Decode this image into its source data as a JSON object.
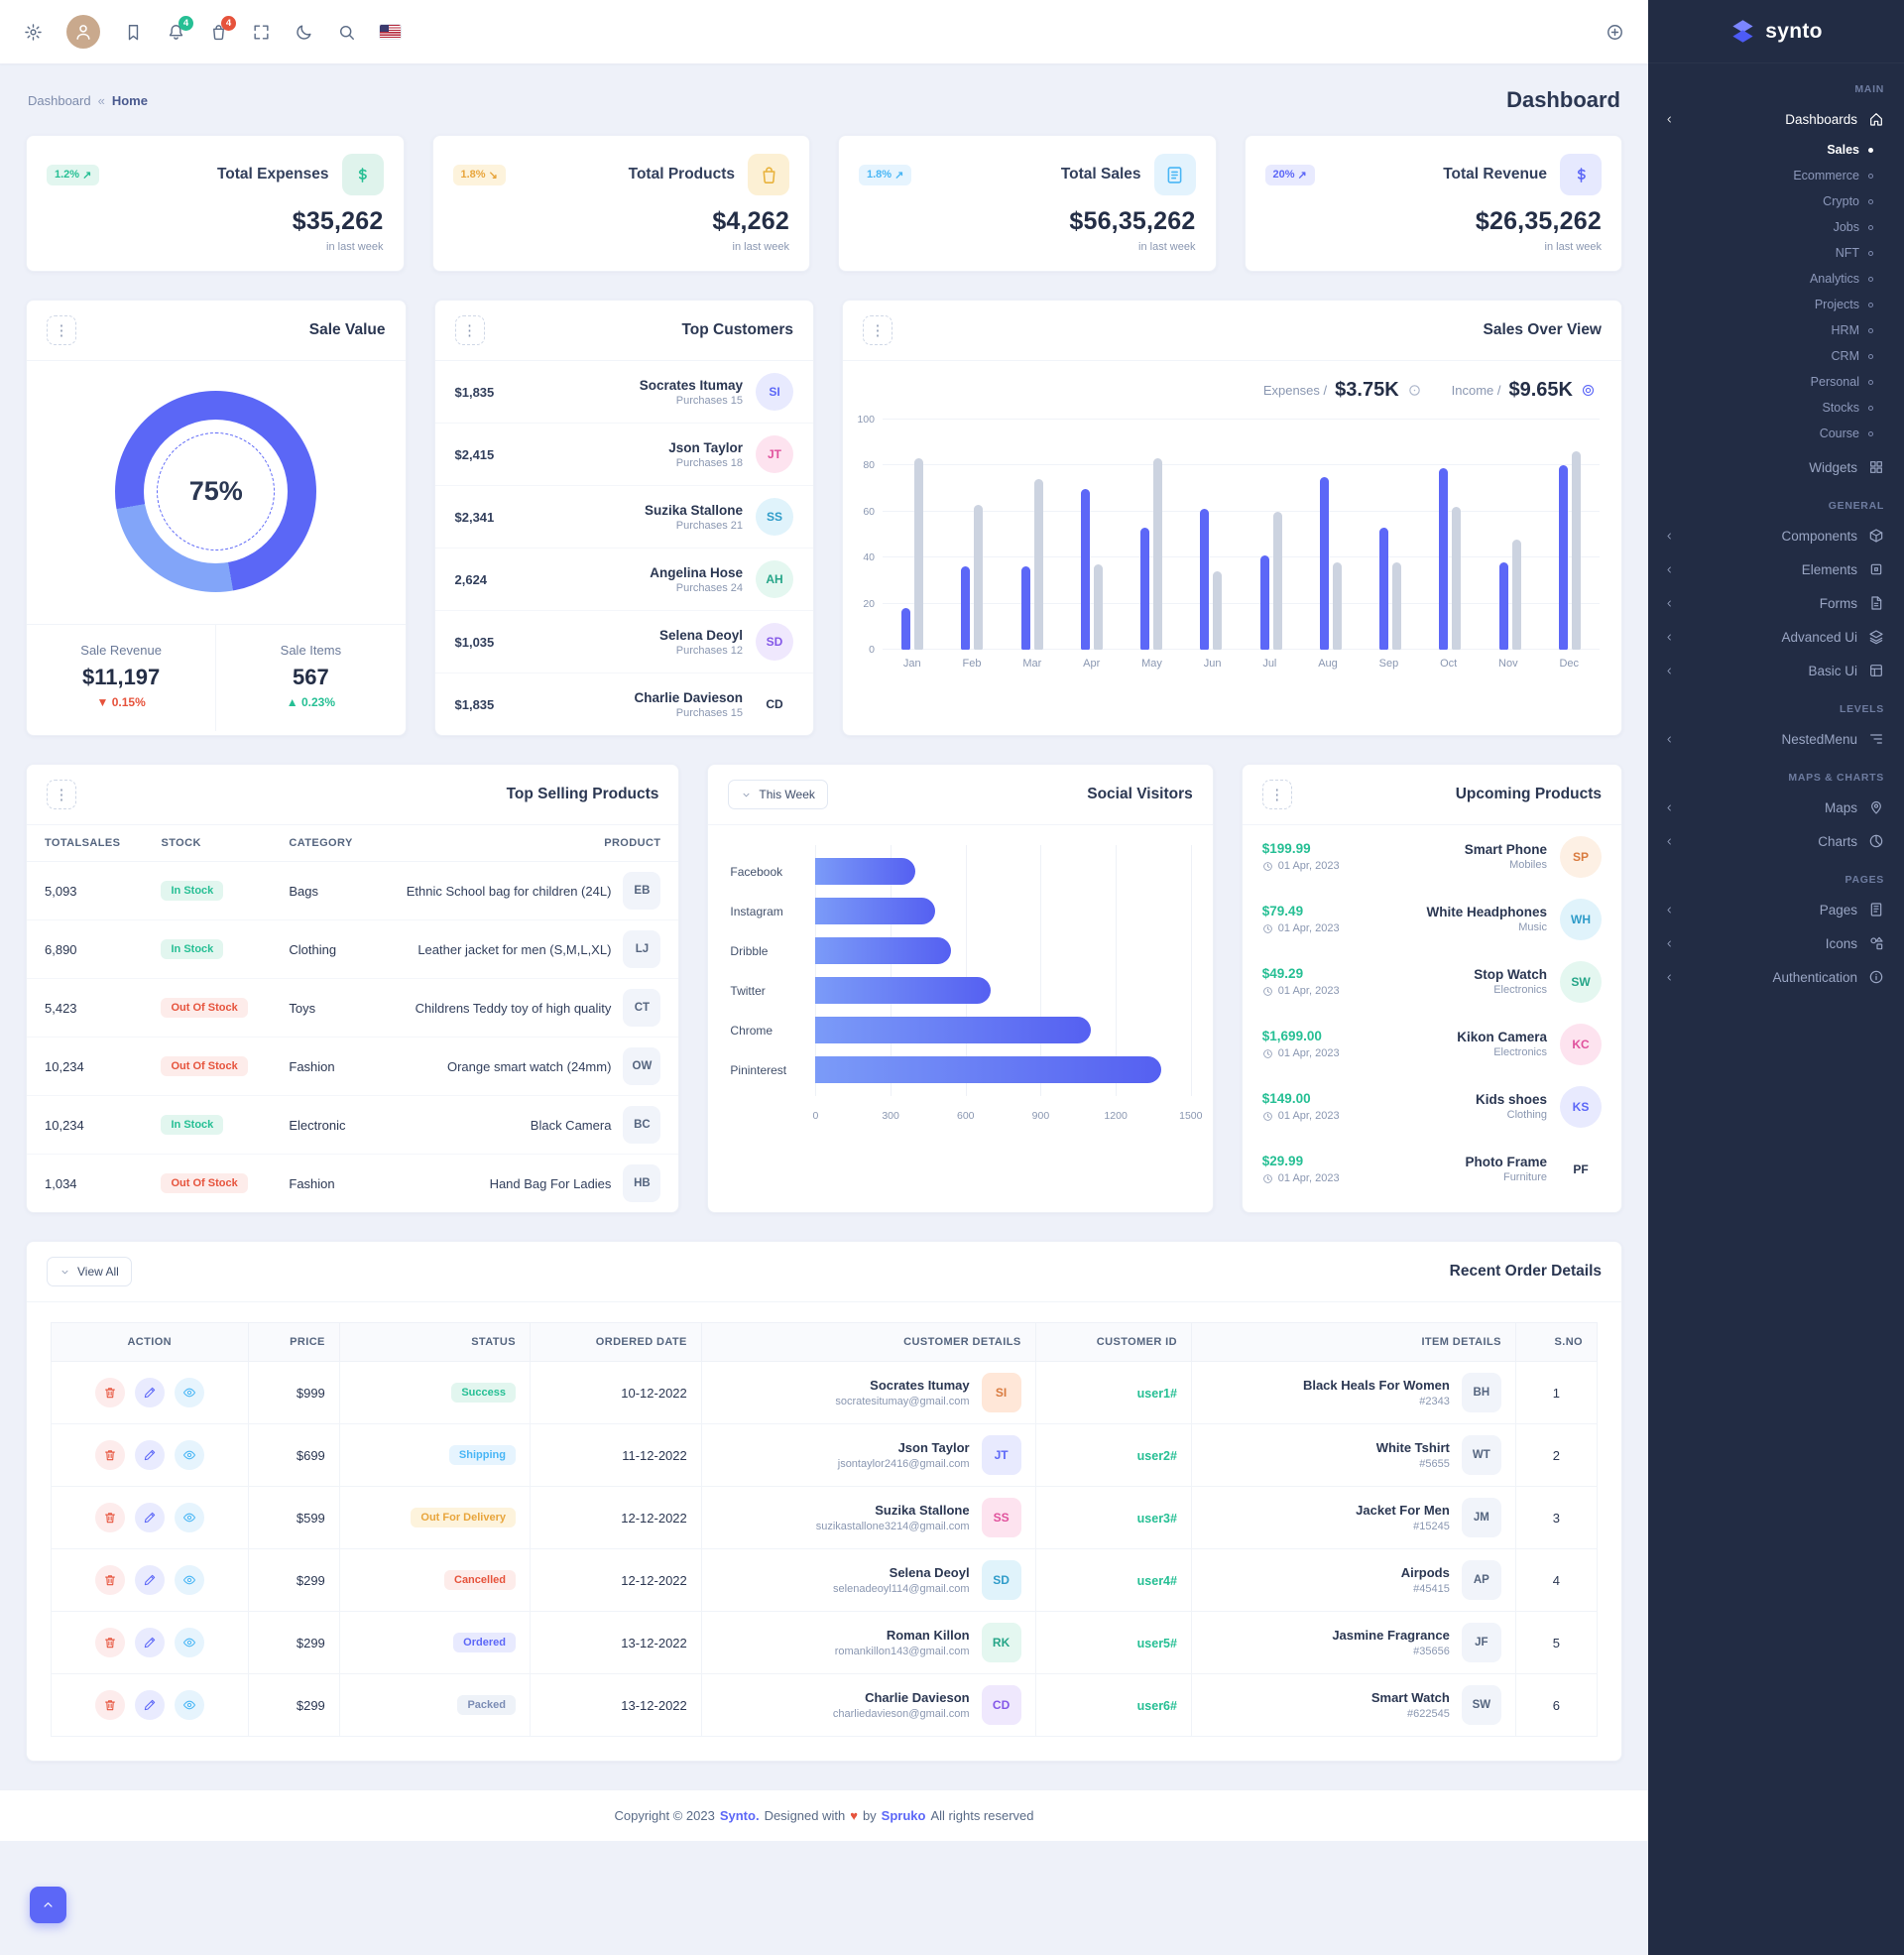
{
  "brand": {
    "name": "synto"
  },
  "icons": {
    "kebab": "⋮"
  },
  "topbar": {
    "bell_badge": "4",
    "cart_badge": "4"
  },
  "breadcrumb": {
    "root": "Dashboard",
    "sep": "«",
    "current": "Home"
  },
  "page_title": "Dashboard",
  "stats": [
    {
      "label": "Total Expenses",
      "value": "$35,262",
      "delta": "1.2%",
      "arrow": "↗",
      "note": "in last week",
      "tone": "success",
      "icon": "#i-dollar"
    },
    {
      "label": "Total Products",
      "value": "$4,262",
      "delta": "1.8%",
      "arrow": "↘",
      "note": "in last week",
      "tone": "warning",
      "icon": "#i-bag"
    },
    {
      "label": "Total Sales",
      "value": "$56,35,262",
      "delta": "1.8%",
      "arrow": "↗",
      "note": "in last week",
      "tone": "info",
      "icon": "#i-list"
    },
    {
      "label": "Total Revenue",
      "value": "$26,35,262",
      "delta": "20%",
      "arrow": "↗",
      "note": "in last week",
      "tone": "primary",
      "icon": "#i-dollar"
    }
  ],
  "sale_value": {
    "title": "Sale Value",
    "percent": "75%",
    "revenue_label": "Sale Revenue",
    "revenue": "$11,197",
    "revenue_arrow": "▼",
    "revenue_delta": "0.15%",
    "items_label": "Sale Items",
    "items": "567",
    "items_arrow": "▲",
    "items_delta": "0.23%"
  },
  "top_customers": {
    "title": "Top Customers",
    "rows": [
      {
        "amount": "$1,835",
        "name": "Socrates Itumay",
        "purchases": "Purchases 15",
        "initials": "SI"
      },
      {
        "amount": "$2,415",
        "name": "Json Taylor",
        "purchases": "Purchases 18",
        "initials": "JT"
      },
      {
        "amount": "$2,341",
        "name": "Suzika Stallone",
        "purchases": "Purchases 21",
        "initials": "SS"
      },
      {
        "amount": "2,624",
        "name": "Angelina Hose",
        "purchases": "Purchases 24",
        "initials": "AH"
      },
      {
        "amount": "$1,035",
        "name": "Selena Deoyl",
        "purchases": "Purchases 12",
        "initials": "SD"
      },
      {
        "amount": "$1,835",
        "name": "Charlie Davieson",
        "purchases": "Purchases 15",
        "initials": "CD"
      }
    ]
  },
  "sales_overview": {
    "title": "Sales Over View",
    "expenses_label": "Expenses /",
    "expenses_value": "$3.75K",
    "income_label": "Income /",
    "income_value": "$9.65K"
  },
  "top_selling": {
    "title": "Top Selling Products",
    "headers": {
      "totalsales": "TOTALSALES",
      "stock": "STOCK",
      "category": "CATEGORY",
      "product": "PRODUCT"
    },
    "rows": [
      {
        "totalsales": "5,093",
        "stock": "In Stock",
        "stock_class": "instock",
        "category": "Bags",
        "product": "Ethnic School bag for children (24L)",
        "initials": "EB"
      },
      {
        "totalsales": "6,890",
        "stock": "In Stock",
        "stock_class": "instock",
        "category": "Clothing",
        "product": "Leather jacket for men (S,M,L,XL)",
        "initials": "LJ"
      },
      {
        "totalsales": "5,423",
        "stock": "Out Of Stock",
        "stock_class": "outstock",
        "category": "Toys",
        "product": "Childrens Teddy toy of high quality",
        "initials": "CT"
      },
      {
        "totalsales": "10,234",
        "stock": "Out Of Stock",
        "stock_class": "outstock",
        "category": "Fashion",
        "product": "Orange smart watch (24mm)",
        "initials": "OW"
      },
      {
        "totalsales": "10,234",
        "stock": "In Stock",
        "stock_class": "instock",
        "category": "Electronic",
        "product": "Black Camera",
        "initials": "BC"
      },
      {
        "totalsales": "1,034",
        "stock": "Out Of Stock",
        "stock_class": "outstock",
        "category": "Fashion",
        "product": "Hand Bag For Ladies",
        "initials": "HB"
      }
    ]
  },
  "social": {
    "title": "Social Visitors",
    "filter_label": "This Week"
  },
  "upcoming": {
    "title": "Upcoming Products",
    "rows": [
      {
        "price": "$199.99",
        "date": "01 Apr, 2023",
        "name": "Smart Phone",
        "category": "Mobiles",
        "initials": "SP"
      },
      {
        "price": "$79.49",
        "date": "01 Apr, 2023",
        "name": "White Headphones",
        "category": "Music",
        "initials": "WH"
      },
      {
        "price": "$49.29",
        "date": "01 Apr, 2023",
        "name": "Stop Watch",
        "category": "Electronics",
        "initials": "SW"
      },
      {
        "price": "$1,699.00",
        "date": "01 Apr, 2023",
        "name": "Kikon Camera",
        "category": "Electronics",
        "initials": "KC"
      },
      {
        "price": "$149.00",
        "date": "01 Apr, 2023",
        "name": "Kids shoes",
        "category": "Clothing",
        "initials": "KS"
      },
      {
        "price": "$29.99",
        "date": "01 Apr, 2023",
        "name": "Photo Frame",
        "category": "Furniture",
        "initials": "PF"
      }
    ]
  },
  "orders": {
    "title": "Recent Order Details",
    "view_all": "View All",
    "headers": {
      "action": "ACTION",
      "price": "PRICE",
      "status": "STATUS",
      "date": "ORDERED DATE",
      "customer": "CUSTOMER DETAILS",
      "customer_id": "CUSTOMER ID",
      "item": "ITEM DETAILS",
      "sno": "S.NO"
    },
    "rows": [
      {
        "price": "$999",
        "status": "Success",
        "status_class": "success",
        "date": "10-12-2022",
        "name": "Socrates Itumay",
        "email": "socratesitumay@gmail.com",
        "initials": "SI",
        "customer_id": "user1#",
        "item": "Black Heals For Women",
        "item_id": "#2343",
        "item_initials": "BH",
        "sno": "1"
      },
      {
        "price": "$699",
        "status": "Shipping",
        "status_class": "shipping",
        "date": "11-12-2022",
        "name": "Json Taylor",
        "email": "jsontaylor2416@gmail.com",
        "initials": "JT",
        "customer_id": "user2#",
        "item": "White Tshirt",
        "item_id": "#5655",
        "item_initials": "WT",
        "sno": "2"
      },
      {
        "price": "$599",
        "status": "Out For Delivery",
        "status_class": "delivery",
        "date": "12-12-2022",
        "name": "Suzika Stallone",
        "email": "suzikastallone3214@gmail.com",
        "initials": "SS",
        "customer_id": "user3#",
        "item": "Jacket For Men",
        "item_id": "#15245",
        "item_initials": "JM",
        "sno": "3"
      },
      {
        "price": "$299",
        "status": "Cancelled",
        "status_class": "cancelled",
        "date": "12-12-2022",
        "name": "Selena Deoyl",
        "email": "selenadeoyl114@gmail.com",
        "initials": "SD",
        "customer_id": "user4#",
        "item": "Airpods",
        "item_id": "#45415",
        "item_initials": "AP",
        "sno": "4"
      },
      {
        "price": "$299",
        "status": "Ordered",
        "status_class": "ordered",
        "date": "13-12-2022",
        "name": "Roman Killon",
        "email": "romankillon143@gmail.com",
        "initials": "RK",
        "customer_id": "user5#",
        "item": "Jasmine Fragrance",
        "item_id": "#35656",
        "item_initials": "JF",
        "sno": "5"
      },
      {
        "price": "$299",
        "status": "Packed",
        "status_class": "packed",
        "date": "13-12-2022",
        "name": "Charlie Davieson",
        "email": "charliedavieson@gmail.com",
        "initials": "CD",
        "customer_id": "user6#",
        "item": "Smart Watch",
        "item_id": "#622545",
        "item_initials": "SW",
        "sno": "6"
      }
    ]
  },
  "footer": {
    "pre": "Copyright © 2023",
    "brand": "Synto.",
    "mid": "Designed with",
    "heart": "♥",
    "by": "by",
    "designer": "Spruko",
    "post": "All rights reserved"
  },
  "sidebar": {
    "logo": "synto",
    "groups": [
      {
        "section": "MAIN",
        "items": [
          {
            "label": "Dashboards",
            "icon": "#i-home",
            "chevron": true,
            "active": true,
            "children": [
              {
                "label": "Sales",
                "active": true
              },
              {
                "label": "Ecommerce"
              },
              {
                "label": "Crypto"
              },
              {
                "label": "Jobs"
              },
              {
                "label": "NFT"
              },
              {
                "label": "Analytics"
              },
              {
                "label": "Projects"
              },
              {
                "label": "HRM"
              },
              {
                "label": "CRM"
              },
              {
                "label": "Personal"
              },
              {
                "label": "Stocks"
              },
              {
                "label": "Course"
              }
            ]
          },
          {
            "label": "Widgets",
            "icon": "#i-widgets"
          }
        ]
      },
      {
        "section": "GENERAL",
        "items": [
          {
            "label": "Components",
            "icon": "#i-components",
            "chevron": true
          },
          {
            "label": "Elements",
            "icon": "#i-elements",
            "chevron": true
          },
          {
            "label": "Forms",
            "icon": "#i-forms",
            "chevron": true
          },
          {
            "label": "Advanced Ui",
            "icon": "#i-advanced",
            "chevron": true
          },
          {
            "label": "Basic Ui",
            "icon": "#i-basic",
            "chevron": true
          }
        ]
      },
      {
        "section": "LEVELS",
        "items": [
          {
            "label": "NestedMenu",
            "icon": "#i-nested",
            "chevron": true
          }
        ]
      },
      {
        "section": "MAPS & CHARTS",
        "items": [
          {
            "label": "Maps",
            "icon": "#i-maps",
            "chevron": true
          },
          {
            "label": "Charts",
            "icon": "#i-charts",
            "chevron": true
          }
        ]
      },
      {
        "section": "PAGES",
        "items": [
          {
            "label": "Pages",
            "icon": "#i-pages",
            "chevron": true
          },
          {
            "label": "Icons",
            "icon": "#i-icons",
            "chevron": true
          },
          {
            "label": "Authentication",
            "icon": "#i-auth",
            "chevron": true
          }
        ]
      }
    ]
  },
  "chart_data": [
    {
      "id": "sale_value_donut",
      "type": "pie",
      "title": "Sale Value",
      "labels": [
        "Sale",
        "Remaining"
      ],
      "values": [
        75,
        25
      ],
      "center_label": "75%"
    },
    {
      "id": "sales_overview",
      "type": "bar",
      "title": "Sales Over View",
      "categories": [
        "Jan",
        "Feb",
        "Mar",
        "Apr",
        "May",
        "Jun",
        "Jul",
        "Aug",
        "Sep",
        "Oct",
        "Nov",
        "Dec"
      ],
      "series": [
        {
          "name": "Income",
          "color": "#5c67f7",
          "values": [
            18,
            36,
            36,
            70,
            53,
            61,
            41,
            75,
            53,
            79,
            38,
            80
          ]
        },
        {
          "name": "Expenses",
          "color": "#ccd3e0",
          "values": [
            83,
            63,
            74,
            37,
            83,
            34,
            60,
            38,
            38,
            62,
            48,
            86
          ]
        }
      ],
      "ylim": [
        0,
        100
      ],
      "yticks": [
        0,
        20,
        40,
        60,
        80,
        100
      ],
      "legend_position": "top-right",
      "grid": true
    },
    {
      "id": "social_visitors",
      "type": "bar",
      "orientation": "horizontal",
      "title": "Social Visitors",
      "categories": [
        "Facebook",
        "Instagram",
        "Dribble",
        "Twitter",
        "Chrome",
        "Pininterest"
      ],
      "values": [
        400,
        480,
        540,
        700,
        1100,
        1380
      ],
      "xlim": [
        0,
        1500
      ],
      "xticks": [
        0,
        300,
        600,
        900,
        1200,
        1500
      ],
      "grid": true
    }
  ]
}
